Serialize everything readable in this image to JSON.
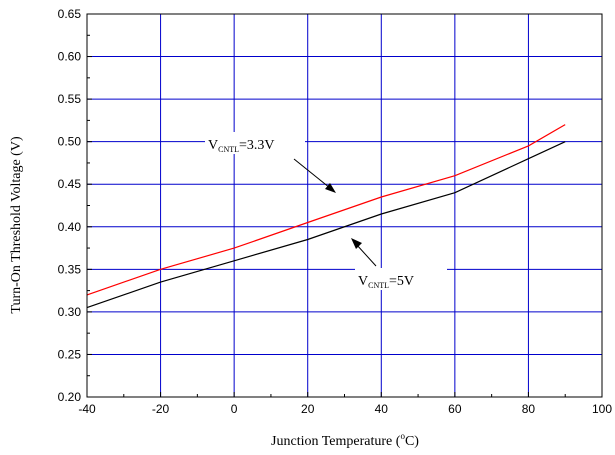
{
  "chart_data": {
    "type": "line",
    "xlabel": "Junction Temperature",
    "xlabel_unit_open": " (",
    "xlabel_unit_sup": "o",
    "xlabel_unit_close": "C)",
    "ylabel": "Turn-On Threshold Voltage (V)",
    "xlim": [
      -40,
      100
    ],
    "ylim": [
      0.2,
      0.65
    ],
    "xticks": [
      -40,
      -20,
      0,
      20,
      40,
      60,
      80,
      100
    ],
    "yticks": [
      0.2,
      0.25,
      0.3,
      0.35,
      0.4,
      0.45,
      0.5,
      0.55,
      0.6,
      0.65
    ],
    "xtick_labels": [
      "-40",
      "-20",
      "0",
      "20",
      "40",
      "60",
      "80",
      "100"
    ],
    "ytick_labels": [
      "0.20",
      "0.25",
      "0.30",
      "0.35",
      "0.40",
      "0.45",
      "0.50",
      "0.55",
      "0.60",
      "0.65"
    ],
    "grid": true,
    "grid_color": "#0000cc",
    "series": [
      {
        "color": "#ff0000",
        "x": [
          -40,
          -20,
          0,
          20,
          40,
          60,
          80,
          90
        ],
        "y": [
          0.32,
          0.35,
          0.375,
          0.405,
          0.435,
          0.46,
          0.495,
          0.52
        ]
      },
      {
        "color": "#000000",
        "x": [
          -40,
          -20,
          0,
          20,
          40,
          60,
          80,
          90
        ],
        "y": [
          0.305,
          0.335,
          0.36,
          0.385,
          0.415,
          0.44,
          0.48,
          0.5
        ]
      }
    ],
    "annotations": [
      {
        "main": "V",
        "sub": "CNTL",
        "value": "=3.3V"
      },
      {
        "main": "V",
        "sub": "CNTL",
        "value": "=5V"
      }
    ]
  }
}
